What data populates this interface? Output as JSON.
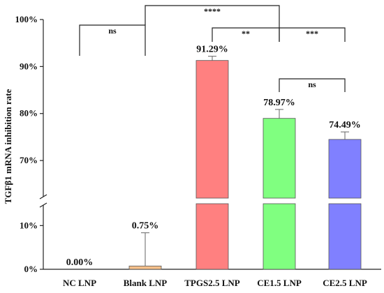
{
  "chart_data": {
    "type": "bar",
    "title": "",
    "ylabel": "TGFβ1 mRNA inhibition rate",
    "xlabel": "",
    "y_axis_break": {
      "lower": [
        0,
        15
      ],
      "upper": [
        62,
        100
      ]
    },
    "yticks_lower": [
      "0%",
      "10%"
    ],
    "yticks_upper": [
      "70%",
      "80%",
      "90%",
      "100%"
    ],
    "categories": [
      "NC LNP",
      "Blank LNP",
      "TPGS2.5 LNP",
      "CE1.5 LNP",
      "CE2.5 LNP"
    ],
    "values": [
      0.0,
      0.75,
      91.29,
      78.97,
      74.49
    ],
    "errors": [
      0,
      7.6,
      0.9,
      1.9,
      1.6
    ],
    "value_labels": [
      "0.00%",
      "0.75%",
      "91.29%",
      "78.97%",
      "74.49%"
    ],
    "colors": [
      "#f0a07a",
      "#f6c08a",
      "#ff8080",
      "#80ff80",
      "#8080ff"
    ],
    "significance": [
      {
        "from": 0,
        "to": 1,
        "label": "ns",
        "level": 1
      },
      {
        "from": 2,
        "to": 3,
        "label": "**",
        "level": 1
      },
      {
        "from": 3,
        "to": 4,
        "label": "***",
        "level": 1
      },
      {
        "from": 3,
        "to": 4,
        "label": "ns",
        "level": 0
      },
      {
        "from": 1,
        "to": 3,
        "label": "****",
        "level": 2
      }
    ]
  }
}
